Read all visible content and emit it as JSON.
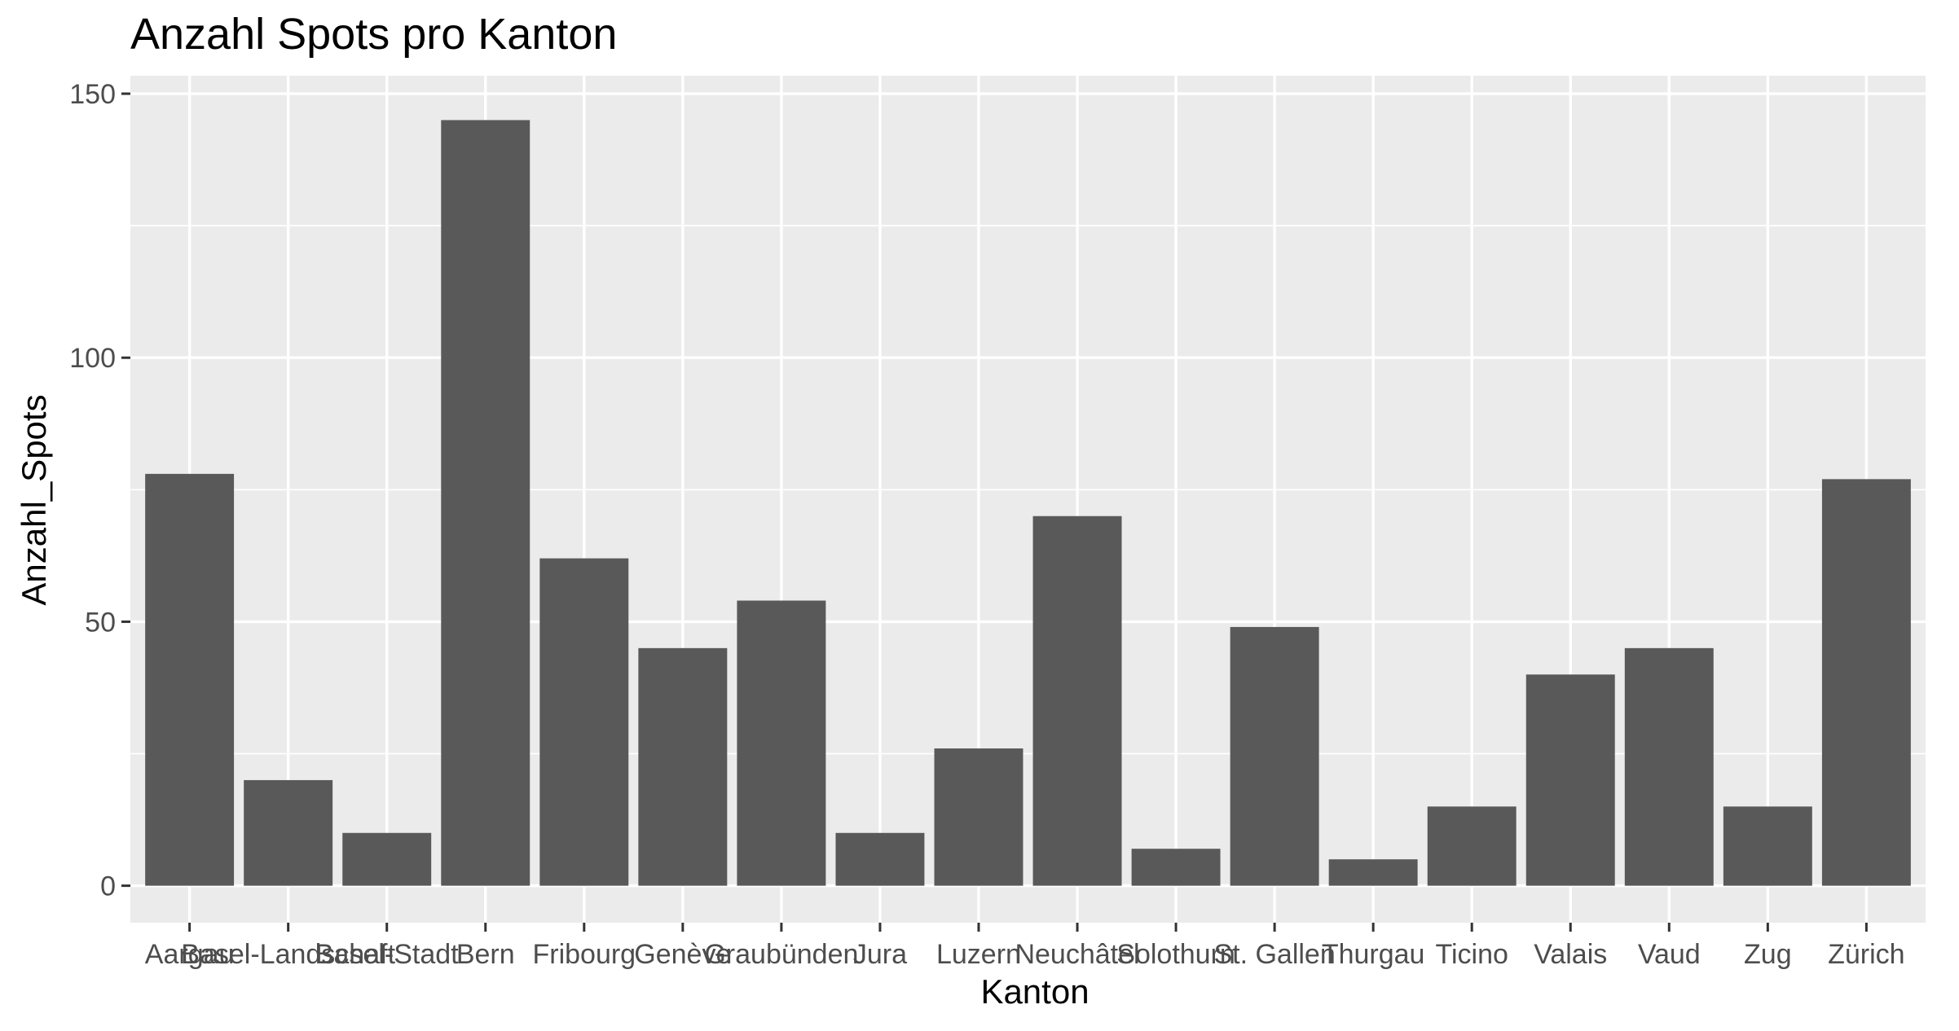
{
  "chart_data": {
    "type": "bar",
    "title": "Anzahl Spots pro Kanton",
    "xlabel": "Kanton",
    "ylabel": "Anzahl_Spots",
    "ylim": [
      -7,
      150
    ],
    "yticks": [
      0,
      50,
      100,
      150
    ],
    "grid": true,
    "categories": [
      "Aargau",
      "Basel-Landschaft",
      "Basel-Stadt",
      "Bern",
      "Fribourg",
      "Genève",
      "Graubünden",
      "Jura",
      "Luzern",
      "Neuchâtel",
      "Solothurn",
      "St. Gallen",
      "Thurgau",
      "Ticino",
      "Valais",
      "Vaud",
      "Zug",
      "Zürich"
    ],
    "values": [
      78,
      20,
      10,
      145,
      62,
      45,
      54,
      10,
      26,
      70,
      7,
      49,
      5,
      15,
      40,
      45,
      15,
      77
    ],
    "bar_color": "#595959",
    "panel_color": "#ebebeb"
  }
}
